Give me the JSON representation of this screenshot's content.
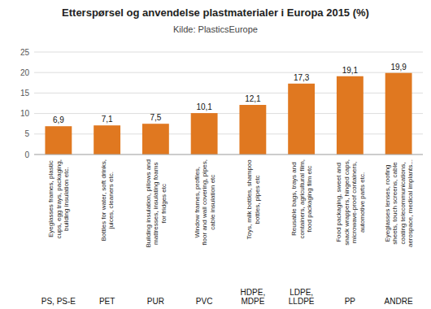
{
  "chart_data": {
    "type": "bar",
    "title": "Etterspørsel og anvendelse plastmaterialer i Europa 2015 (%)",
    "subtitle": "Kilde: PlasticsEurope",
    "categories": [
      "PS, PS-E",
      "PET",
      "PUR",
      "PVC",
      "HDPE,\nMDPE",
      "LDPE,\nLLDPE",
      "PP",
      "ANDRE"
    ],
    "values": [
      6.9,
      7.1,
      7.5,
      10.1,
      12.1,
      17.3,
      19.1,
      19.9
    ],
    "value_labels": [
      "6,9",
      "7,1",
      "7,5",
      "10,1",
      "12,1",
      "17,3",
      "19,1",
      "19,9"
    ],
    "data_labels": true,
    "annotations": [
      "Eyeglasses frames, plastic\ncups, egg trays, packaging,\nbuilding insulation etc.",
      "Bottles for water, soft drinks,\njuices, cleaners etc.",
      "Building insulation, pillows and\nmattresses, insulating foams\nfor fridges etc",
      "Window frames, profiles,\nfloor and wall covering, pipes,\ncable insulation etc",
      "Toys, milk bottles, shampoo\nbottles, pipes etc",
      "Reusable bags, trays and\ncontainers, agricultural film,\nfood packaging film etc",
      "Food packaging, sweet and\nsnack wrappers, hinged caps,\nmicrowave-proof containers,\nautomotive parts etc.",
      "Eyeglasses lenses, roofing\nsheets, touch screens, cable\ncoating telecommunications,\naerospace, medical implants..."
    ],
    "color": "#E07820",
    "ylim": [
      0,
      25
    ],
    "yticks": [
      0,
      5,
      10,
      15,
      20,
      25
    ],
    "grid": true
  }
}
